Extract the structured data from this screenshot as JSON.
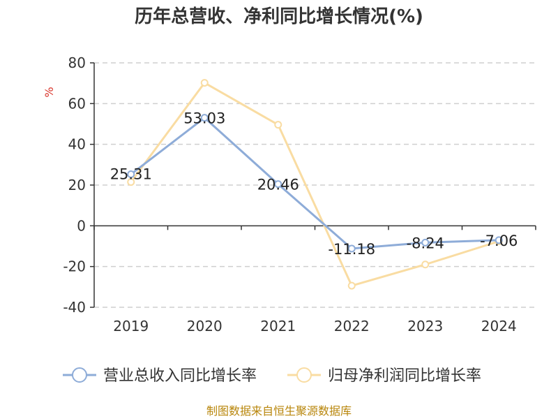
{
  "chart_data": {
    "type": "line",
    "title": "历年总营收、净利同比增长情况(%)",
    "ylabel": "%",
    "categories": [
      "2019",
      "2020",
      "2021",
      "2022",
      "2023",
      "2024"
    ],
    "ylim": [
      -40,
      80
    ],
    "yticks": [
      -40,
      -20,
      0,
      20,
      40,
      60,
      80
    ],
    "grid": true,
    "legend_position": "bottom",
    "series": [
      {
        "name": "营业总收入同比增长率",
        "values": [
          25.31,
          53.03,
          20.46,
          -11.18,
          -8.24,
          -7.06
        ],
        "labels": [
          "25.31",
          "53.03",
          "20.46",
          "-11.18",
          "-8.24",
          "-7.06"
        ],
        "color": "#8eacd8"
      },
      {
        "name": "归母净利润同比增长率",
        "values": [
          21.5,
          70.2,
          49.6,
          -29.4,
          -19.0,
          -7.6
        ],
        "color": "#f9dca2"
      }
    ]
  },
  "source": "制图数据来自恒生聚源数据库"
}
